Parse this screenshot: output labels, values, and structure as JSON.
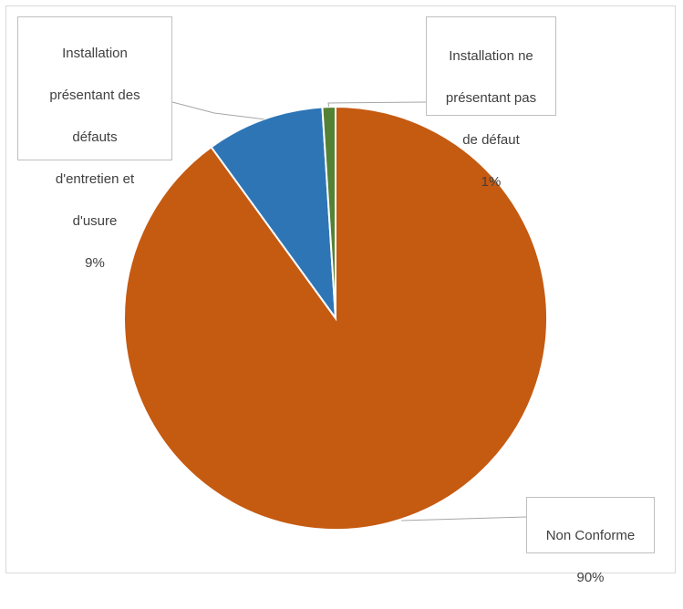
{
  "chart_data": {
    "type": "pie",
    "slices": [
      {
        "label": "Non Conforme",
        "value": 90,
        "value_label": "90%",
        "color": "#c55a11"
      },
      {
        "label": "Installation présentant des défauts d'entretien et d'usure",
        "value": 9,
        "value_label": "9%",
        "color": "#2e75b6"
      },
      {
        "label": "Installation ne présentant pas de défaut",
        "value": 1,
        "value_label": "1%",
        "color": "#548235"
      }
    ],
    "legend": "none"
  },
  "labels": {
    "non_conforme": {
      "line1": "Non Conforme",
      "pct": "90%"
    },
    "defauts": {
      "line1": "Installation",
      "line2": "présentant des",
      "line3": "défauts",
      "line4": "d'entretien et",
      "line5": "d'usure",
      "pct": "9%"
    },
    "sans_defaut": {
      "line1": "Installation ne",
      "line2": "présentant pas",
      "line3": "de défaut",
      "pct": "1%"
    }
  }
}
